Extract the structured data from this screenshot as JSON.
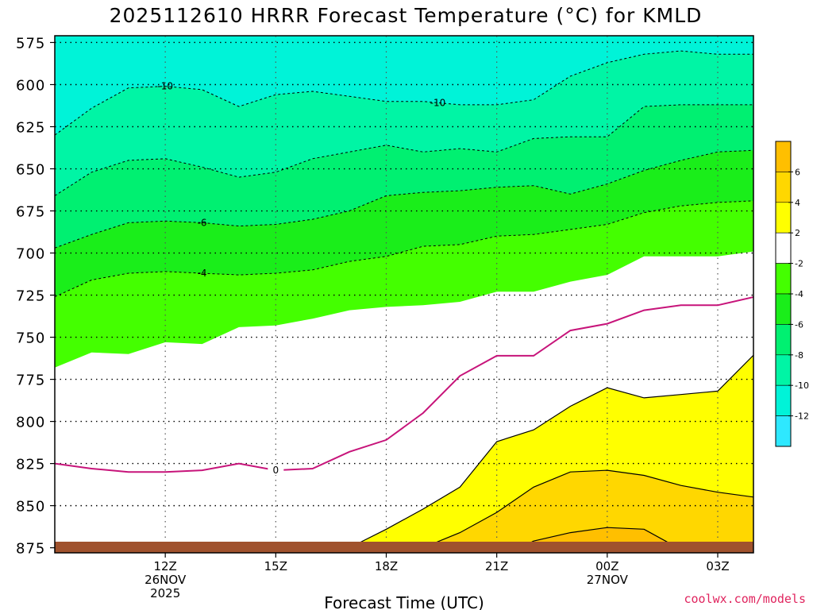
{
  "chart_data": {
    "type": "heatmap",
    "title": "2025112610 HRRR Forecast Temperature (°C) for KMLD",
    "xlabel": "Forecast Time (UTC)",
    "ylabel": "",
    "y_ticks": [
      "575",
      "600",
      "625",
      "650",
      "675",
      "700",
      "725",
      "750",
      "775",
      "800",
      "825",
      "850",
      "875"
    ],
    "y_values": [
      575,
      600,
      625,
      650,
      675,
      700,
      725,
      750,
      775,
      800,
      825,
      850,
      875
    ],
    "ylim": [
      571,
      878
    ],
    "x_hours": [
      9,
      10,
      11,
      12,
      13,
      14,
      15,
      16,
      17,
      18,
      19,
      20,
      21,
      22,
      23,
      24,
      25,
      26,
      27,
      28
    ],
    "x_ticks": [
      {
        "hour": 12,
        "lines": [
          "12Z",
          "26NOV",
          "2025"
        ]
      },
      {
        "hour": 15,
        "lines": [
          "15Z"
        ]
      },
      {
        "hour": 18,
        "lines": [
          "18Z"
        ]
      },
      {
        "hour": 21,
        "lines": [
          "21Z"
        ]
      },
      {
        "hour": 24,
        "lines": [
          "00Z",
          "27NOV"
        ]
      },
      {
        "hour": 27,
        "lines": [
          "03Z"
        ]
      }
    ],
    "xlim": [
      9,
      27.97
    ],
    "colorbar": {
      "ticks": [
        "6",
        "4",
        "2",
        "-2",
        "-4",
        "-6",
        "-8",
        "-10",
        "-12"
      ],
      "bins": [
        {
          "range": [
            6,
            8
          ],
          "color": "#ffbf00"
        },
        {
          "range": [
            4,
            6
          ],
          "color": "#ffd700"
        },
        {
          "range": [
            2,
            4
          ],
          "color": "#ffff00"
        },
        {
          "range": [
            -2,
            2
          ],
          "color": "#ffffff"
        },
        {
          "range": [
            -4,
            -2
          ],
          "color": "#44ff00"
        },
        {
          "range": [
            -6,
            -4
          ],
          "color": "#1aee1a"
        },
        {
          "range": [
            -8,
            -6
          ],
          "color": "#00f071"
        },
        {
          "range": [
            -10,
            -8
          ],
          "color": "#00f5a5"
        },
        {
          "range": [
            -12,
            -10
          ],
          "color": "#00f3d8"
        },
        {
          "range": [
            -14,
            -12
          ],
          "color": "#2ee8ff"
        }
      ]
    },
    "contours": [
      {
        "level": -12,
        "style": "dashed",
        "label": "",
        "pressures": [
          585,
          577,
          571,
          571,
          571,
          571,
          571,
          571,
          571,
          571,
          571,
          571,
          571,
          571,
          571,
          571,
          571,
          571,
          571,
          571
        ]
      },
      {
        "level": -11,
        "style": "dashed",
        "label": "",
        "pressures": [
          583,
          574,
          571,
          571,
          571,
          571,
          571,
          571,
          574,
          576,
          574,
          572,
          571,
          571,
          571,
          571,
          571,
          571,
          571,
          571
        ]
      },
      {
        "level": -10,
        "style": "dashed",
        "label": "-10",
        "pressures": [
          630,
          614,
          602,
          601,
          603,
          613,
          606,
          604,
          607,
          610,
          610,
          612,
          612,
          609,
          595,
          587,
          582,
          580,
          582,
          582
        ]
      },
      {
        "level": -8,
        "style": "dashed",
        "label": "",
        "pressures": [
          666,
          652,
          645,
          644,
          649,
          655,
          652,
          644,
          640,
          636,
          640,
          638,
          640,
          632,
          631,
          631,
          613,
          612,
          612,
          612
        ]
      },
      {
        "level": -6,
        "style": "dashed",
        "label": "-6",
        "pressures": [
          697,
          689,
          682,
          681,
          682,
          684,
          683,
          680,
          675,
          666,
          664,
          663,
          661,
          660,
          665,
          659,
          651,
          645,
          640,
          639
        ]
      },
      {
        "level": -4,
        "style": "dashed",
        "label": "-4",
        "pressures": [
          726,
          716,
          712,
          711,
          712,
          713,
          712,
          710,
          705,
          702,
          696,
          695,
          690,
          689,
          686,
          683,
          676,
          672,
          670,
          669
        ]
      },
      {
        "level": -2,
        "style": "solid-fill-edge",
        "label": "",
        "pressures": [
          768,
          759,
          760,
          753,
          754,
          744,
          743,
          739,
          734,
          732,
          731,
          729,
          723,
          723,
          717,
          713,
          702,
          702,
          702,
          699
        ]
      },
      {
        "level": 0,
        "style": "magenta",
        "label": "0",
        "pressures": [
          825,
          828,
          830,
          830,
          829,
          825,
          829,
          828,
          818,
          811,
          795,
          773,
          761,
          761,
          746,
          742,
          734,
          731,
          731,
          726
        ]
      },
      {
        "level": 2,
        "style": "solid",
        "label": "",
        "pressures": [
          881,
          881,
          881,
          881,
          881,
          881,
          881,
          881,
          875,
          864,
          852,
          839,
          812,
          805,
          791,
          780,
          786,
          784,
          782,
          760
        ]
      },
      {
        "level": 4,
        "style": "solid",
        "label": "",
        "pressures": [
          882,
          882,
          882,
          882,
          882,
          882,
          882,
          882,
          882,
          882,
          875,
          866,
          854,
          839,
          830,
          829,
          832,
          838,
          842,
          845
        ]
      },
      {
        "level": 6,
        "style": "solid",
        "label": "",
        "pressures": [
          882,
          882,
          882,
          882,
          882,
          882,
          882,
          882,
          882,
          882,
          882,
          882,
          882,
          871,
          866,
          863,
          864,
          876,
          882,
          882
        ]
      }
    ],
    "terrain_pressure_top": 878
  },
  "credit": "coolwx.com/models"
}
